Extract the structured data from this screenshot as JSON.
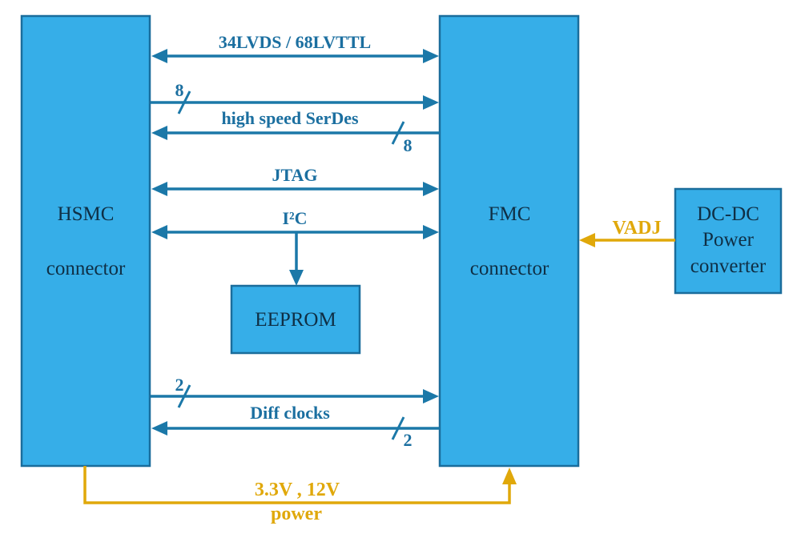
{
  "blocks": {
    "hsmc": [
      "HSMC",
      "connector"
    ],
    "fmc": [
      "FMC",
      "connector"
    ],
    "dcdc": [
      "DC-DC",
      "Power",
      "converter"
    ],
    "eeprom": "EEPROM"
  },
  "signals": {
    "lvds": "34LVDS / 68LVTTL",
    "serdes": "high speed SerDes",
    "serdes_width_tx": "8",
    "serdes_width_rx": "8",
    "jtag": "JTAG",
    "i2c": "I²C",
    "diff_clocks": "Diff clocks",
    "clk_width_tx": "2",
    "clk_width_rx": "2",
    "vadj": "VADJ",
    "power_line1": "3.3V , 12V",
    "power_line2": "power"
  },
  "colors": {
    "block_fill": "#36aee8",
    "signal": "#1b78a8",
    "power": "#e0a80a"
  }
}
